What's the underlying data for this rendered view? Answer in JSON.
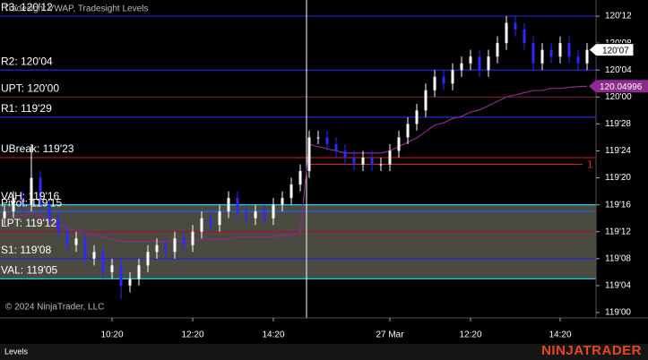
{
  "chart_data": {
    "type": "candlestick",
    "title": "Tradesight VWAP, Tradesight Levels",
    "copyright": "© 2024 NinjaTrader, LLC",
    "panel_label": "Levels",
    "brand": "NINJATRADER",
    "up_color": "#ffffff",
    "down_color": "#2a2aff",
    "categories": [
      null,
      null,
      null,
      null,
      null,
      null,
      null,
      null,
      null,
      null,
      null,
      null,
      "10:20",
      null,
      null,
      null,
      null,
      null,
      null,
      null,
      null,
      "12:20",
      null,
      null,
      null,
      null,
      null,
      null,
      null,
      null,
      "14:20",
      null,
      null,
      null,
      null,
      null,
      null,
      null,
      null,
      null,
      null,
      null,
      null,
      "27 Mar",
      null,
      null,
      null,
      null,
      null,
      null,
      null,
      null,
      "12:20",
      null,
      null,
      null,
      null,
      null,
      null,
      null,
      null,
      null,
      "14:20",
      null,
      null,
      null
    ],
    "open": [
      119.4375,
      119.46875,
      119.53125,
      119.5,
      119.625,
      119.5,
      119.4375,
      119.375,
      119.3125,
      119.34375,
      119.25,
      119.28125,
      119.1875,
      119.21875,
      119.125,
      119.15625,
      119.21875,
      119.28125,
      119.3125,
      119.28125,
      119.34375,
      119.3125,
      119.375,
      119.4375,
      119.40625,
      119.46875,
      119.53125,
      119.46875,
      119.4375,
      119.46875,
      119.4375,
      119.5,
      119.53125,
      119.59375,
      119.65625,
      119.8125,
      119.8125,
      119.78125,
      119.75,
      119.71875,
      119.6875,
      119.71875,
      119.6875,
      119.6875,
      119.75,
      119.8125,
      119.875,
      119.9375,
      120.03125,
      120.09375,
      120.0625,
      120.125,
      120.15625,
      120.1875,
      120.125,
      120.1875,
      120.25,
      120.34375,
      120.3125,
      120.25,
      120.15625,
      120.21875,
      120.1875,
      120.25,
      120.1875,
      120.15625
    ],
    "high": [
      119.5,
      119.5625,
      119.5625,
      119.78125,
      119.65625,
      119.53125,
      119.46875,
      119.40625,
      119.375,
      119.375,
      119.3125,
      119.3125,
      119.25,
      119.25,
      119.1875,
      119.25,
      119.3125,
      119.34375,
      119.34375,
      119.375,
      119.375,
      119.40625,
      119.46875,
      119.46875,
      119.5,
      119.5625,
      119.5625,
      119.5,
      119.5,
      119.5,
      119.53125,
      119.5625,
      119.625,
      119.6875,
      119.84375,
      119.84375,
      119.84375,
      119.8125,
      119.78125,
      119.75,
      119.75,
      119.75,
      119.71875,
      119.78125,
      119.84375,
      119.90625,
      119.96875,
      120.0625,
      120.125,
      120.125,
      120.15625,
      120.1875,
      120.21875,
      120.21875,
      120.21875,
      120.28125,
      120.375,
      120.375,
      120.34375,
      120.28125,
      120.25,
      120.25,
      120.28125,
      120.28125,
      120.21875,
      120.25
    ],
    "low": [
      119.40625,
      119.4375,
      119.46875,
      119.46875,
      119.46875,
      119.40625,
      119.34375,
      119.28125,
      119.28125,
      119.21875,
      119.21875,
      119.15625,
      119.15625,
      119.0625,
      119.09375,
      119.125,
      119.1875,
      119.25,
      119.25,
      119.25,
      119.28125,
      119.28125,
      119.34375,
      119.375,
      119.375,
      119.4375,
      119.4375,
      119.40625,
      119.40625,
      119.40625,
      119.40625,
      119.46875,
      119.5,
      119.5625,
      119.625,
      119.78125,
      119.75,
      119.71875,
      119.6875,
      119.65625,
      119.65625,
      119.65625,
      119.65625,
      119.65625,
      119.71875,
      119.78125,
      119.84375,
      119.90625,
      120,
      120.03125,
      120.03125,
      120.09375,
      120.125,
      120.09375,
      120.09375,
      120.15625,
      120.21875,
      120.28125,
      120.21875,
      120.125,
      120.125,
      120.15625,
      120.15625,
      120.15625,
      120.125,
      120.125
    ],
    "close": [
      119.46875,
      119.53125,
      119.5,
      119.625,
      119.5,
      119.4375,
      119.375,
      119.3125,
      119.34375,
      119.25,
      119.28125,
      119.1875,
      119.21875,
      119.125,
      119.15625,
      119.21875,
      119.28125,
      119.3125,
      119.28125,
      119.34375,
      119.3125,
      119.375,
      119.4375,
      119.40625,
      119.46875,
      119.53125,
      119.46875,
      119.4375,
      119.46875,
      119.4375,
      119.5,
      119.53125,
      119.59375,
      119.65625,
      119.8125,
      119.8125,
      119.78125,
      119.75,
      119.71875,
      119.6875,
      119.71875,
      119.6875,
      119.6875,
      119.75,
      119.8125,
      119.875,
      119.9375,
      120.03125,
      120.09375,
      120.0625,
      120.125,
      120.15625,
      120.1875,
      120.125,
      120.1875,
      120.25,
      120.34375,
      120.3125,
      120.25,
      120.15625,
      120.21875,
      120.1875,
      120.25,
      120.1875,
      120.15625,
      120.21875
    ],
    "vwap": {
      "color": "#8e2a8e",
      "values": [
        119.46,
        119.45,
        119.45,
        119.46,
        119.45,
        119.43,
        119.41,
        119.39,
        119.38,
        119.37,
        119.36,
        119.35,
        119.34,
        119.33,
        119.33,
        119.33,
        119.33,
        119.33,
        119.33,
        119.33,
        119.33,
        119.33,
        119.34,
        119.34,
        119.34,
        119.34,
        119.35,
        119.35,
        119.35,
        119.35,
        119.35,
        119.36,
        119.36,
        119.37,
        119.78,
        119.77,
        119.76,
        119.75,
        119.74,
        119.74,
        119.74,
        119.74,
        119.74,
        119.75,
        119.77,
        119.79,
        119.81,
        119.84,
        119.87,
        119.88,
        119.9,
        119.91,
        119.93,
        119.94,
        119.96,
        119.98,
        120,
        120.01,
        120.02,
        120.03,
        120.03,
        120.04,
        120.04,
        120.045,
        120.048,
        120.04996
      ]
    },
    "levels": [
      {
        "label": "R3: 120'12",
        "value": 120.375,
        "color": "#2323d8"
      },
      {
        "label": "R2: 120'04",
        "value": 120.125,
        "color": "#2323d8"
      },
      {
        "label": "UPT: 120'00",
        "value": 120,
        "color": "#7a1446"
      },
      {
        "label": "R1: 119'29",
        "value": 119.90625,
        "color": "#2323d8"
      },
      {
        "label": "UBreak: 119'23",
        "value": 119.71875,
        "color": "#b01818"
      },
      {
        "label": "Pivot: 119'15",
        "value": 119.46875,
        "color": "#2a5cff"
      },
      {
        "label": "VAH: 119'16",
        "value": 119.5,
        "color": "#18c8e8"
      },
      {
        "label": "LPT: 119'12",
        "value": 119.375,
        "color": "#a01040"
      },
      {
        "label": "S1: 119'08",
        "value": 119.25,
        "color": "#2323d8"
      },
      {
        "label": "VAL: 119'05",
        "value": 119.15625,
        "color": "#18c8e8"
      }
    ],
    "zone_color": "#4a4a40",
    "marker": {
      "label": "1",
      "value": 119.6875,
      "color": "#e02020"
    },
    "last_price": {
      "value": 120.21875,
      "label": "120'07"
    },
    "vwap_tag": 120.04996,
    "ylim": [
      118.975,
      120.45
    ],
    "yticks": [
      {
        "value": 120.375,
        "label": "120'12"
      },
      {
        "value": 120.25,
        "label": "120'08"
      },
      {
        "value": 120.125,
        "label": "120'04"
      },
      {
        "value": 120,
        "label": "120'00"
      },
      {
        "value": 119.875,
        "label": "119'28"
      },
      {
        "value": 119.75,
        "label": "119'24"
      },
      {
        "value": 119.625,
        "label": "119'20"
      },
      {
        "value": 119.5,
        "label": "119'16"
      },
      {
        "value": 119.375,
        "label": "119'12"
      },
      {
        "value": 119.25,
        "label": "119'08"
      },
      {
        "value": 119.125,
        "label": "119'04"
      },
      {
        "value": 119,
        "label": "119'00"
      }
    ]
  }
}
